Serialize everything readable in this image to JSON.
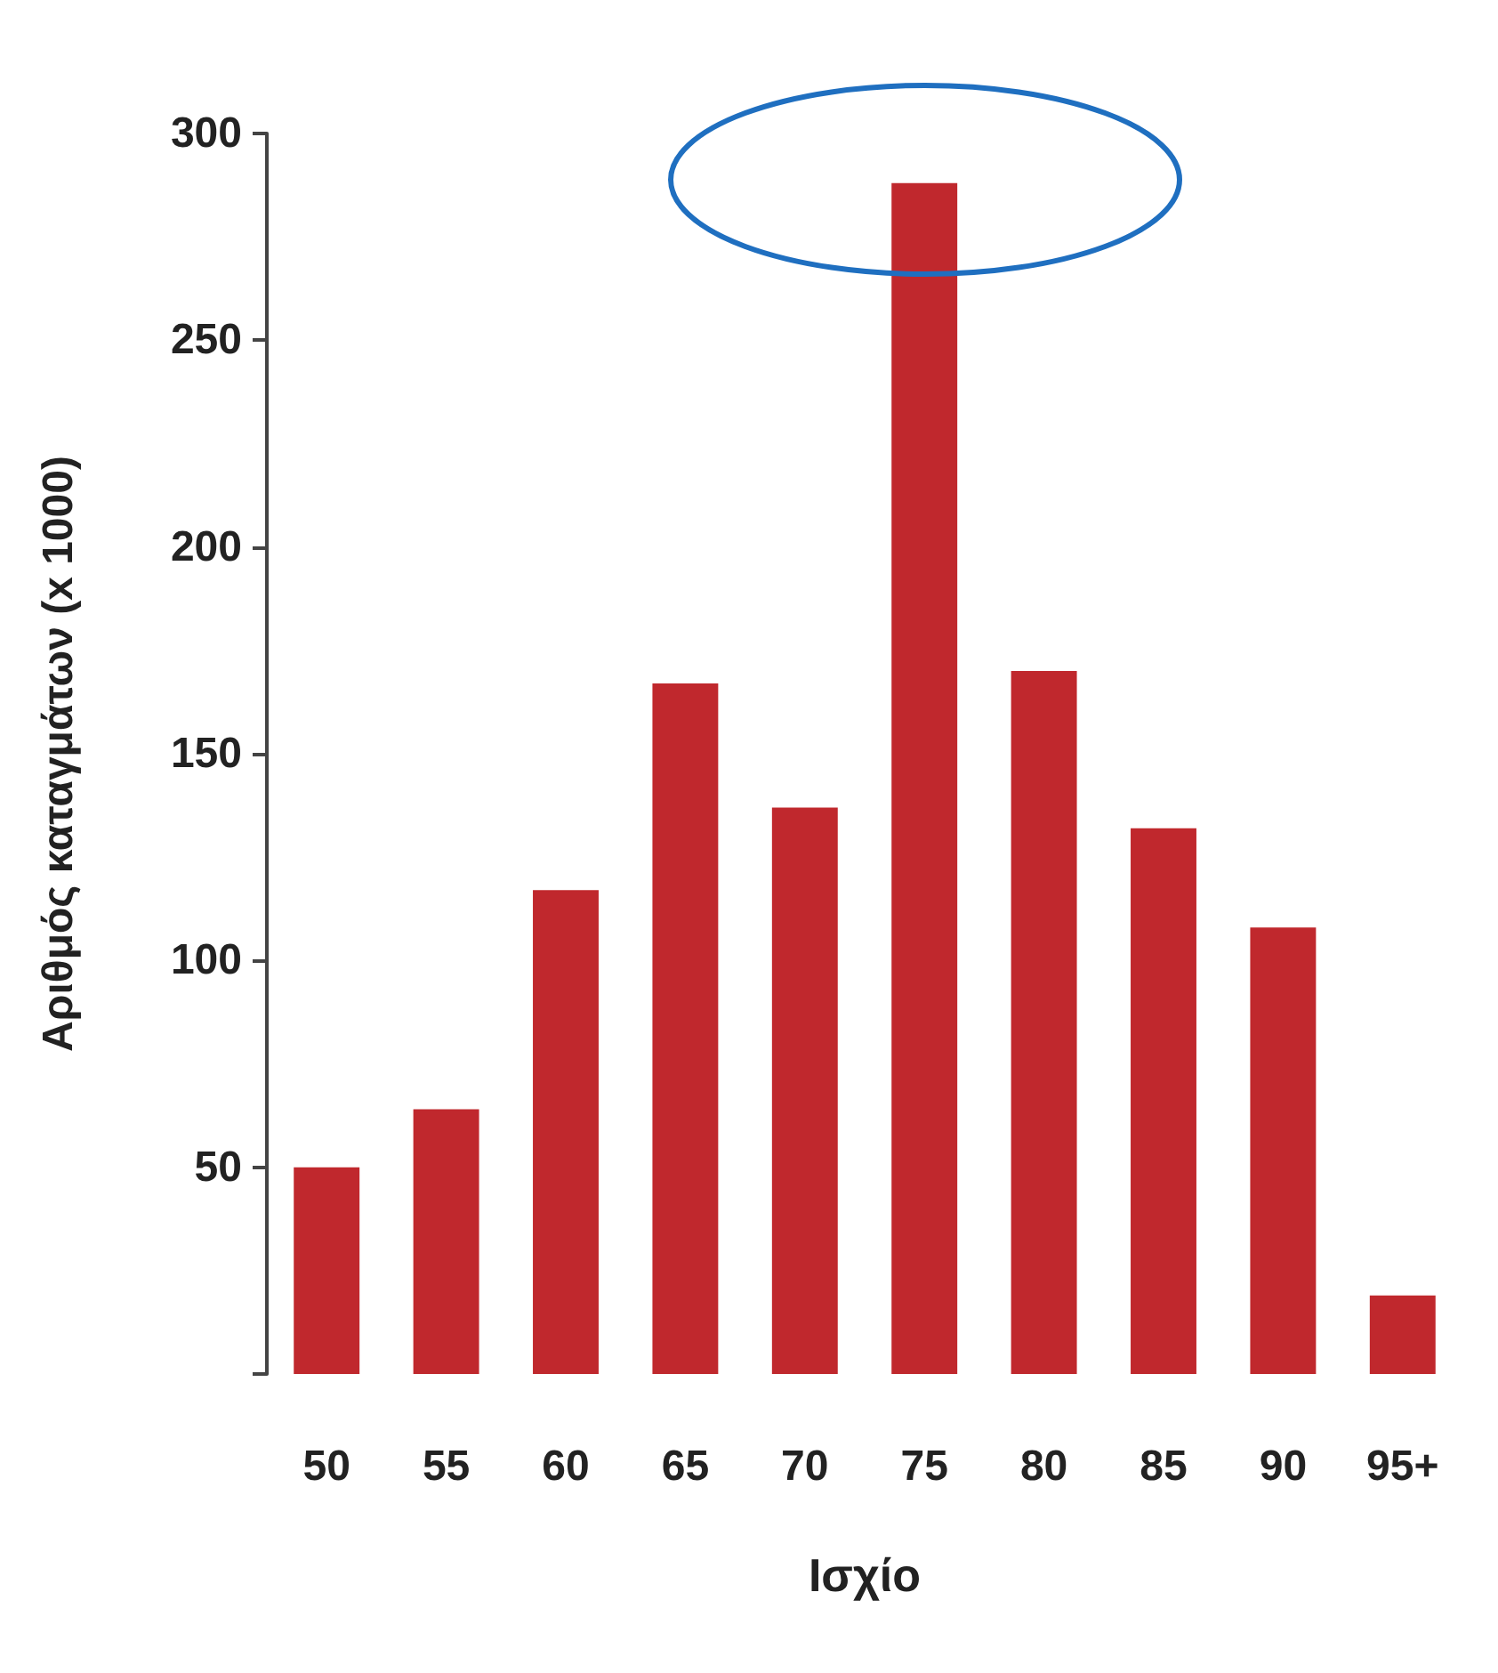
{
  "chart_data": {
    "type": "bar",
    "xlabel": "Ισχίο",
    "ylabel": "Αριθμός καταγμάτων (x 1000)",
    "categories": [
      "50",
      "55",
      "60",
      "65",
      "70",
      "75",
      "80",
      "85",
      "90",
      "95+"
    ],
    "values": [
      50,
      64,
      117,
      167,
      137,
      288,
      170,
      132,
      108,
      19
    ],
    "color": "#c0282d",
    "ylim": [
      0,
      300
    ],
    "yticks": [
      {
        "value": 0,
        "label": null
      },
      50,
      100,
      150,
      200,
      250,
      300
    ],
    "grid": false
  }
}
